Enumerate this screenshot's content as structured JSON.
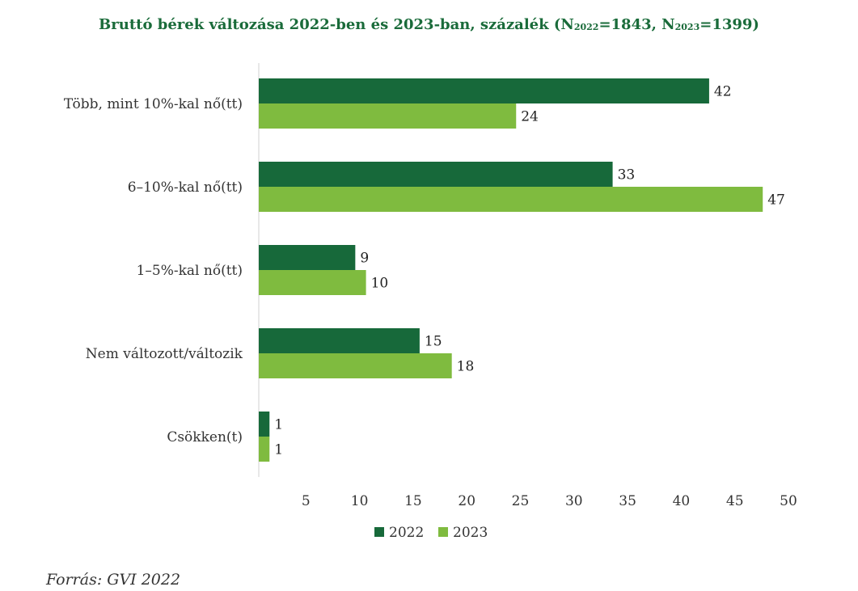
{
  "title": {
    "main": "Bruttó bérek változása 2022-ben és 2023-ban, százalék (N",
    "sub1": "2022",
    "mid": "=1843, N",
    "sub2": "2023",
    "end": "=1399)"
  },
  "source": "Forrás: GVI 2022",
  "colors": {
    "2022": "#17693a",
    "2023": "#7fbb3f"
  },
  "chart_data": {
    "type": "bar",
    "orientation": "horizontal",
    "categories": [
      "Több, mint 10%-kal nő(tt)",
      "6–10%-kal nő(tt)",
      "1–5%-kal nő(tt)",
      "Nem változott/változik",
      "Csökken(t)"
    ],
    "series": [
      {
        "name": "2022",
        "values": [
          42,
          33,
          9,
          15,
          1
        ]
      },
      {
        "name": "2023",
        "values": [
          24,
          47,
          10,
          18,
          1
        ]
      }
    ],
    "xlim": [
      0,
      50
    ],
    "xticks": [
      5,
      10,
      15,
      20,
      25,
      30,
      35,
      40,
      45,
      50
    ],
    "grid": false,
    "legend": "bottom"
  }
}
